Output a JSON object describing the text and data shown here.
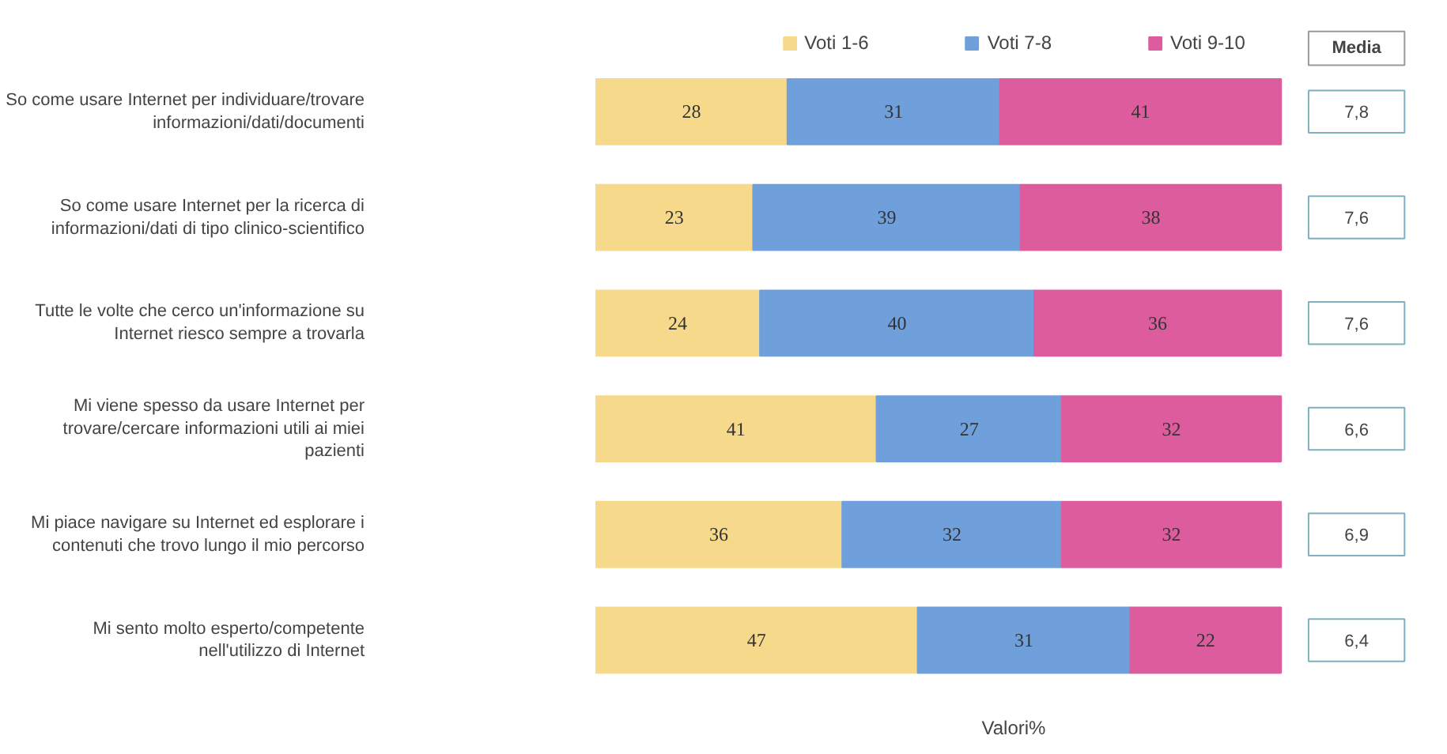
{
  "chart_data": {
    "type": "bar",
    "orientation": "horizontal",
    "stacked": true,
    "data_labels": true,
    "legend": "top",
    "grid": false,
    "tick_labels": "y",
    "xlabel": "Valori%",
    "categories": [
      "So come usare Internet per individuare/trovare informazioni/dati/documenti",
      "So come usare Internet per la ricerca di informazioni/dati di tipo clinico-scientifico",
      "Tutte le volte che cerco un'informazione su Internet riesco sempre a trovarla",
      "Mi viene spesso da usare Internet per trovare/cercare informazioni utili ai miei pazienti",
      "Mi piace navigare su Internet ed esplorare i contenuti che trovo lungo il mio percorso",
      "Mi sento molto esperto/competente nell'utilizzo di Internet"
    ],
    "series": [
      {
        "name": "Voti 1-6",
        "color": "#f7d98b",
        "values": [
          28,
          23,
          24,
          41,
          36,
          47
        ]
      },
      {
        "name": "Voti 7-8",
        "color": "#6fa0dc",
        "values": [
          31,
          39,
          40,
          27,
          32,
          31
        ]
      },
      {
        "name": "Voti 9-10",
        "color": "#dd5c9e",
        "values": [
          41,
          38,
          36,
          32,
          32,
          22
        ]
      }
    ],
    "annotations": [
      "Media",
      "7,8",
      "7,6",
      "7,6",
      "6,6",
      "6,9",
      "6,4"
    ]
  }
}
